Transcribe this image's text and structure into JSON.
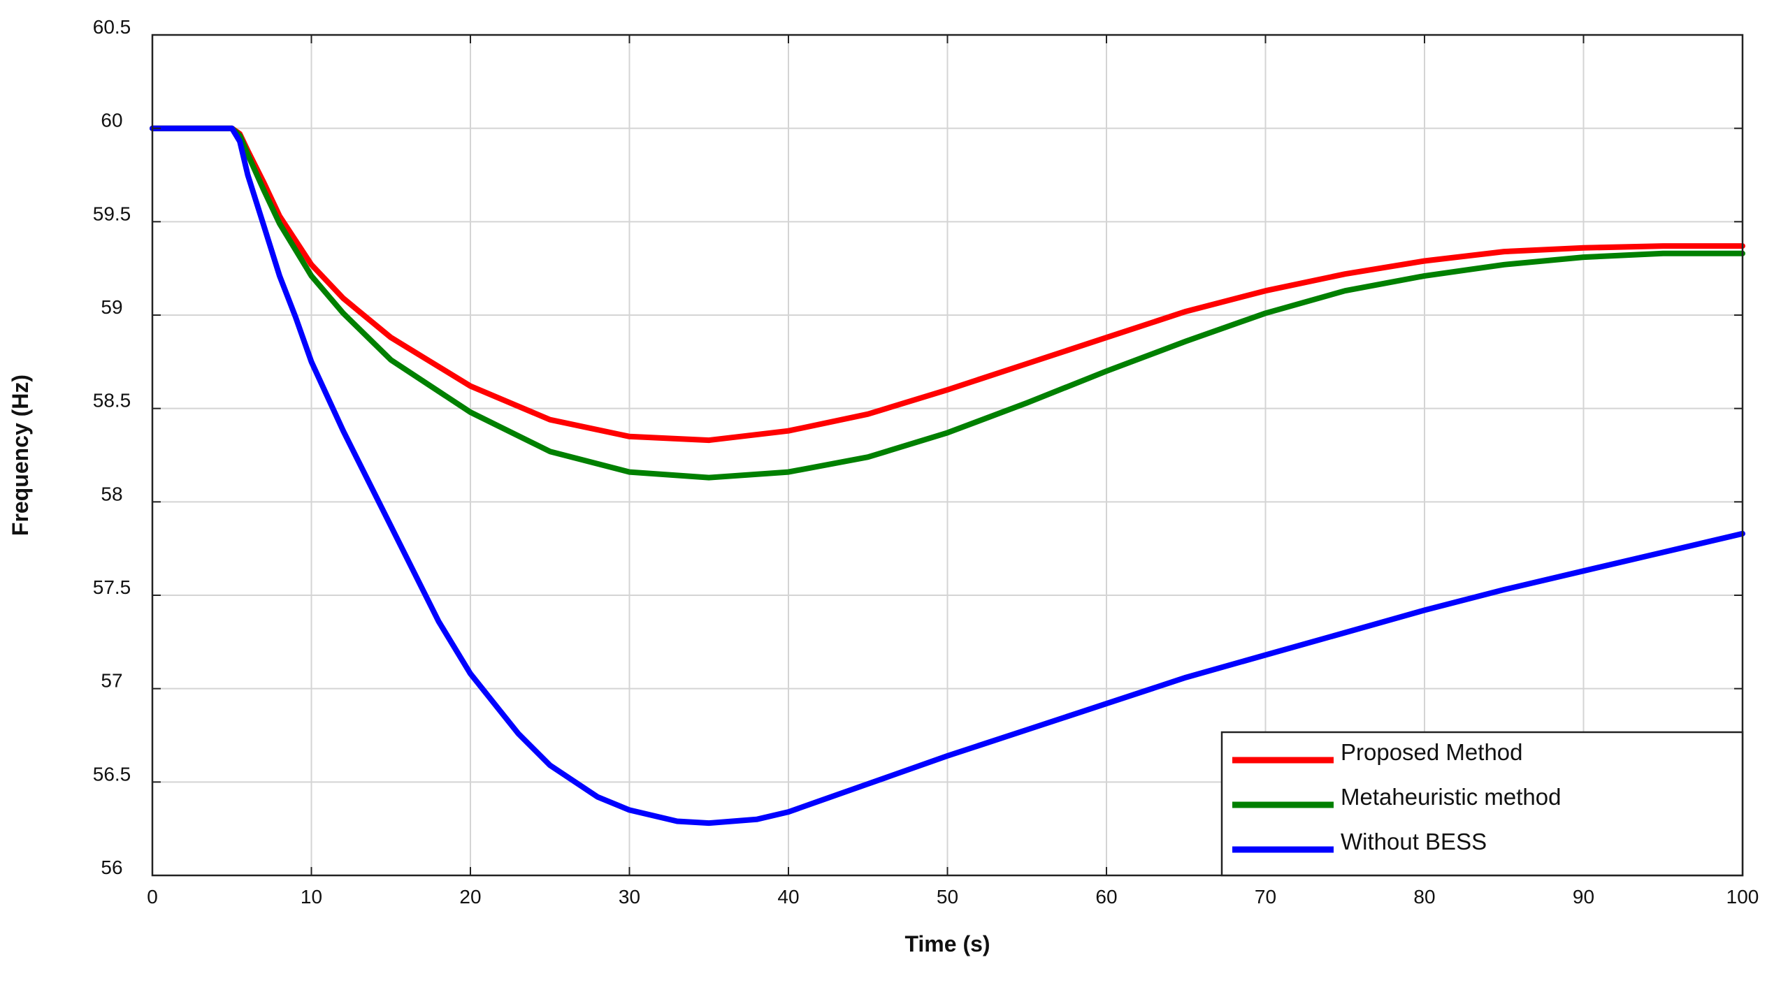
{
  "chart_data": {
    "type": "line",
    "title": "",
    "xlabel": "Time (s)",
    "ylabel": "Frequency (Hz)",
    "xlim": [
      0,
      100
    ],
    "ylim": [
      56,
      60.5
    ],
    "xticks": [
      0,
      10,
      20,
      30,
      40,
      50,
      60,
      70,
      80,
      90,
      100
    ],
    "yticks": [
      56,
      56.5,
      57,
      57.5,
      58,
      58.5,
      59,
      59.5,
      60,
      60.5
    ],
    "xtick_labels": [
      "0",
      "10",
      "20",
      "30",
      "40",
      "50",
      "60",
      "70",
      "80",
      "90",
      "100"
    ],
    "ytick_labels": [
      "56",
      "56.5",
      "57",
      "57.5",
      "58",
      "58.5",
      "59",
      "59.5",
      "60",
      "60.5"
    ],
    "grid": true,
    "legend_position": "bottom-right",
    "series": [
      {
        "name": "Proposed Method",
        "color": "#ff0000",
        "x": [
          0,
          5,
          5.5,
          6,
          7,
          8,
          10,
          12,
          15,
          20,
          25,
          30,
          35,
          40,
          45,
          50,
          55,
          60,
          65,
          70,
          75,
          80,
          85,
          90,
          95,
          100
        ],
        "y": [
          60,
          60,
          59.97,
          59.88,
          59.71,
          59.53,
          59.27,
          59.09,
          58.88,
          58.62,
          58.44,
          58.35,
          58.33,
          58.38,
          58.47,
          58.6,
          58.74,
          58.88,
          59.02,
          59.13,
          59.22,
          59.29,
          59.34,
          59.36,
          59.37,
          59.37
        ]
      },
      {
        "name": "Metaheuristic method",
        "color": "#008000",
        "x": [
          0,
          5,
          5.5,
          6,
          7,
          8,
          10,
          12,
          15,
          20,
          25,
          30,
          35,
          40,
          45,
          50,
          55,
          60,
          65,
          70,
          75,
          80,
          85,
          90,
          95,
          100
        ],
        "y": [
          60,
          60,
          59.96,
          59.86,
          59.67,
          59.49,
          59.21,
          59.01,
          58.76,
          58.48,
          58.27,
          58.16,
          58.13,
          58.16,
          58.24,
          58.37,
          58.53,
          58.7,
          58.86,
          59.01,
          59.13,
          59.21,
          59.27,
          59.31,
          59.33,
          59.33
        ]
      },
      {
        "name": "Without BESS",
        "color": "#0000ff",
        "x": [
          0,
          5,
          5.5,
          6,
          7,
          8,
          9,
          10,
          12,
          15,
          18,
          20,
          23,
          25,
          28,
          30,
          33,
          35,
          38,
          40,
          43,
          45,
          50,
          55,
          60,
          65,
          70,
          75,
          80,
          85,
          90,
          95,
          100
        ],
        "y": [
          60,
          60,
          59.93,
          59.75,
          59.48,
          59.21,
          58.99,
          58.75,
          58.38,
          57.87,
          57.36,
          57.08,
          56.76,
          56.59,
          56.42,
          56.35,
          56.29,
          56.28,
          56.3,
          56.34,
          56.43,
          56.49,
          56.64,
          56.78,
          56.92,
          57.06,
          57.18,
          57.3,
          57.42,
          57.53,
          57.63,
          57.73,
          57.83
        ]
      }
    ]
  }
}
